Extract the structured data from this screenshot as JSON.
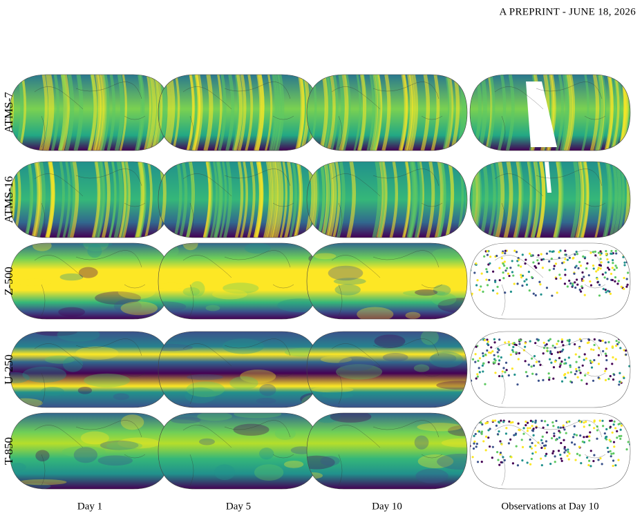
{
  "header": {
    "text": "A PREPRINT - JUNE 18, 2026"
  },
  "figure": {
    "rows": [
      "ATMS-7",
      "ATMS-16",
      "Z-500",
      "U-250",
      "T-850"
    ],
    "columns": [
      "Day 1",
      "Day 5",
      "Day 10",
      "Observations at Day 10"
    ]
  }
}
